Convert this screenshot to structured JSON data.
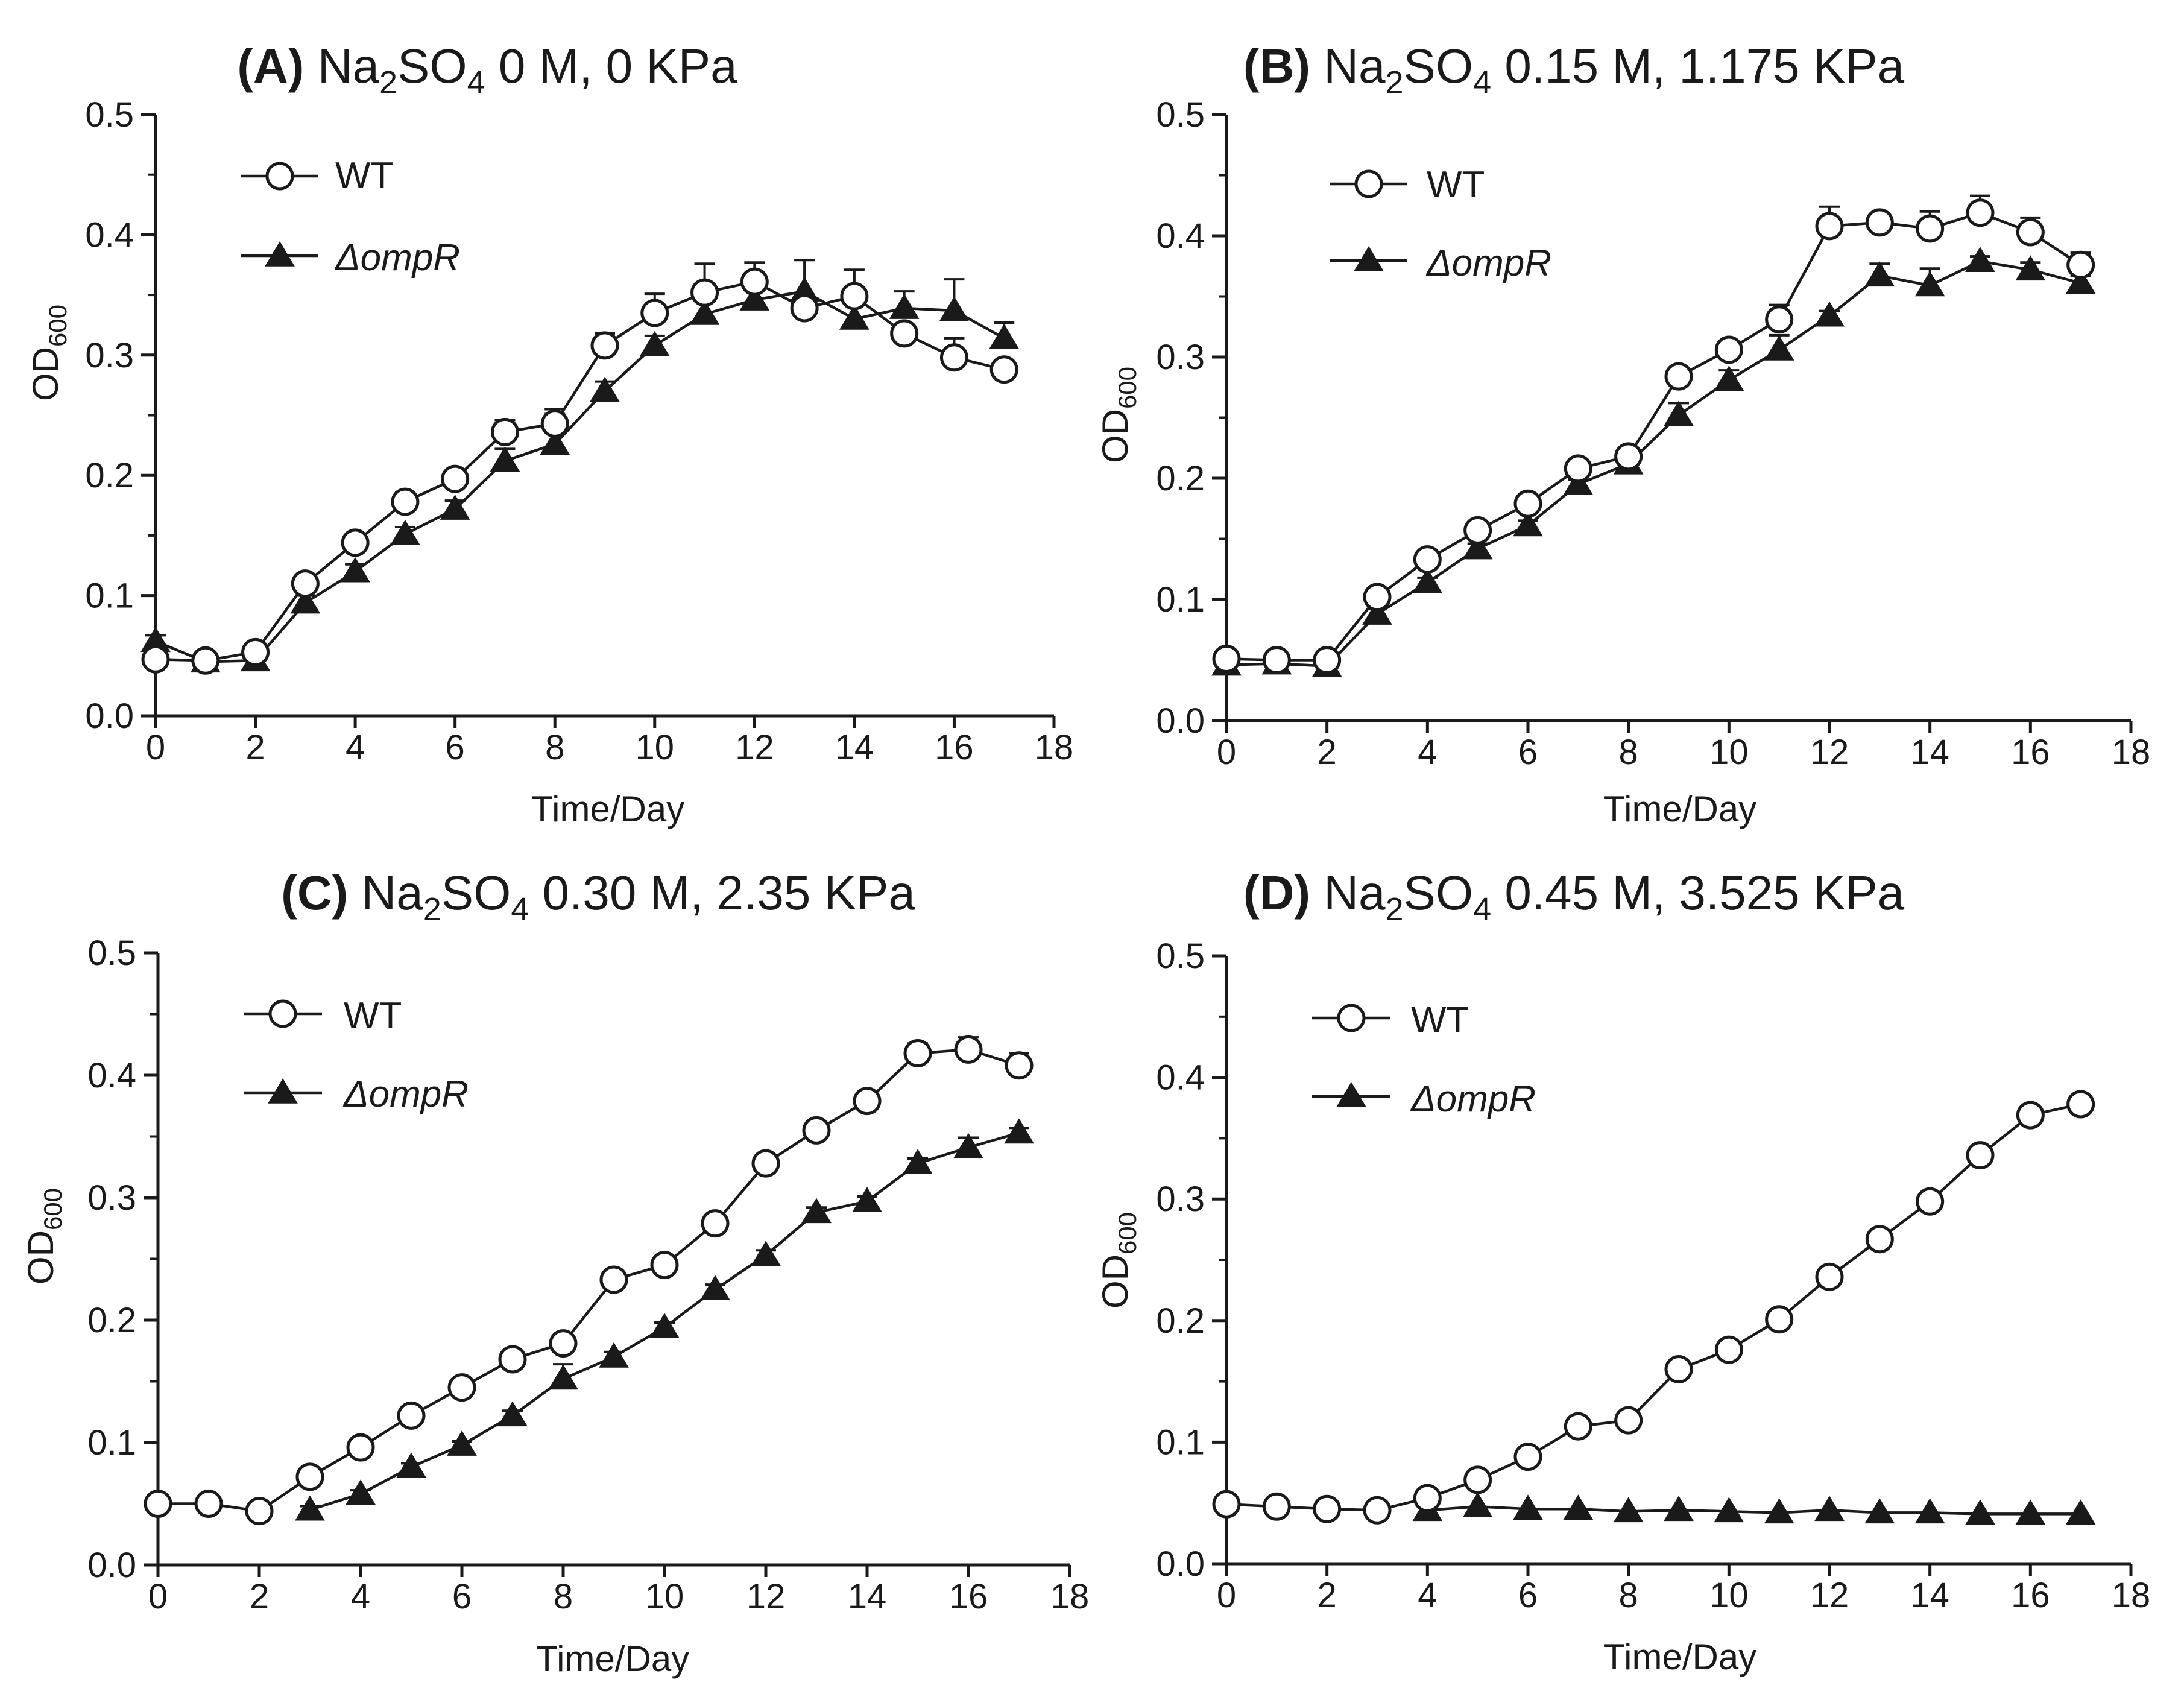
{
  "chart_data": [
    {
      "type": "line",
      "panel_label": "(A)",
      "title_main": "Na",
      "title_sub": "2",
      "title_mid": "SO",
      "title_sub2": "4",
      "title_rest": " 0 M,  0 KPa",
      "xlabel": "Time/Day",
      "ylabel_main": "OD",
      "ylabel_sub": "600",
      "xlim": [
        0,
        18
      ],
      "ylim": [
        0,
        0.5
      ],
      "xticks": [
        "0",
        "2",
        "4",
        "6",
        "8",
        "10",
        "12",
        "14",
        "16",
        "18"
      ],
      "yticks": [
        "0.0",
        "0.1",
        "0.2",
        "0.3",
        "0.4",
        "0.5"
      ],
      "legend_position": "top-left",
      "series": [
        {
          "name": "WT",
          "marker": "open-circle",
          "x": [
            0,
            1,
            2,
            3,
            4,
            5,
            6,
            7,
            8,
            9,
            10,
            11,
            12,
            13,
            14,
            15,
            16,
            17
          ],
          "values": [
            0.047,
            0.046,
            0.053,
            0.11,
            0.144,
            0.178,
            0.197,
            0.236,
            0.243,
            0.308,
            0.335,
            0.352,
            0.361,
            0.339,
            0.349,
            0.318,
            0.298,
            0.288
          ],
          "errors": [
            0.004,
            0.003,
            0.004,
            0.005,
            0.005,
            0.008,
            0.005,
            0.01,
            0.012,
            0.01,
            0.016,
            0.024,
            0.016,
            0.009,
            0.022,
            0.008,
            0.016,
            0.006
          ]
        },
        {
          "name": "ΔompR",
          "marker": "filled-triangle",
          "x": [
            0,
            1,
            2,
            3,
            4,
            5,
            6,
            7,
            8,
            9,
            10,
            11,
            12,
            13,
            14,
            15,
            16,
            17
          ],
          "values": [
            0.062,
            0.045,
            0.046,
            0.094,
            0.12,
            0.151,
            0.172,
            0.212,
            0.226,
            0.27,
            0.308,
            0.334,
            0.346,
            0.353,
            0.33,
            0.339,
            0.337,
            0.314
          ],
          "errors": [
            0.005,
            0.003,
            0.003,
            0.006,
            0.006,
            0.006,
            0.007,
            0.01,
            0.025,
            0.008,
            0.008,
            0.014,
            0.012,
            0.026,
            0.02,
            0.014,
            0.026,
            0.013
          ]
        }
      ]
    },
    {
      "type": "line",
      "panel_label": "(B)",
      "title_main": "Na",
      "title_sub": "2",
      "title_mid": "SO",
      "title_sub2": "4",
      "title_rest": " 0.15 M, 1.175 KPa",
      "xlabel": "Time/Day",
      "ylabel_main": "OD",
      "ylabel_sub": "600",
      "xlim": [
        0,
        18
      ],
      "ylim": [
        0,
        0.5
      ],
      "xticks": [
        "0",
        "2",
        "4",
        "6",
        "8",
        "10",
        "12",
        "14",
        "16",
        "18"
      ],
      "yticks": [
        "0.0",
        "0.1",
        "0.2",
        "0.3",
        "0.4",
        "0.5"
      ],
      "legend_position": "top-left",
      "series": [
        {
          "name": "WT",
          "marker": "open-circle",
          "x": [
            0,
            1,
            2,
            3,
            4,
            5,
            6,
            7,
            8,
            9,
            10,
            11,
            12,
            13,
            14,
            15,
            16,
            17
          ],
          "values": [
            0.051,
            0.05,
            0.05,
            0.102,
            0.133,
            0.157,
            0.179,
            0.208,
            0.218,
            0.284,
            0.306,
            0.331,
            0.408,
            0.411,
            0.406,
            0.419,
            0.403,
            0.376
          ],
          "errors": [
            0.003,
            0.003,
            0.003,
            0.004,
            0.004,
            0.004,
            0.004,
            0.004,
            0.006,
            0.005,
            0.006,
            0.012,
            0.016,
            0.006,
            0.014,
            0.014,
            0.012,
            0.01
          ]
        },
        {
          "name": "ΔompR",
          "marker": "filled-triangle",
          "x": [
            0,
            1,
            2,
            3,
            4,
            5,
            6,
            7,
            8,
            9,
            10,
            11,
            12,
            13,
            14,
            15,
            16,
            17
          ],
          "values": [
            0.046,
            0.047,
            0.045,
            0.088,
            0.114,
            0.142,
            0.161,
            0.195,
            0.212,
            0.252,
            0.281,
            0.306,
            0.334,
            0.367,
            0.359,
            0.379,
            0.372,
            0.361
          ],
          "errors": [
            0.003,
            0.003,
            0.003,
            0.004,
            0.004,
            0.004,
            0.004,
            0.004,
            0.008,
            0.01,
            0.008,
            0.012,
            0.004,
            0.01,
            0.014,
            0.004,
            0.006,
            0.006
          ]
        }
      ]
    },
    {
      "type": "line",
      "panel_label": "(C)",
      "title_main": "Na",
      "title_sub": "2",
      "title_mid": "SO",
      "title_sub2": "4",
      "title_rest": " 0.30 M, 2.35 KPa",
      "xlabel": "Time/Day",
      "ylabel_main": "OD",
      "ylabel_sub": "600",
      "xlim": [
        0,
        18
      ],
      "ylim": [
        0,
        0.5
      ],
      "xticks": [
        "0",
        "2",
        "4",
        "6",
        "8",
        "10",
        "12",
        "14",
        "16",
        "18"
      ],
      "yticks": [
        "0.0",
        "0.1",
        "0.2",
        "0.3",
        "0.4",
        "0.5"
      ],
      "legend_position": "top-left",
      "series": [
        {
          "name": "WT",
          "marker": "open-circle",
          "x": [
            0,
            1,
            2,
            3,
            4,
            5,
            6,
            7,
            8,
            9,
            10,
            11,
            12,
            13,
            14,
            15,
            16,
            17
          ],
          "values": [
            0.05,
            0.05,
            0.044,
            0.072,
            0.096,
            0.122,
            0.145,
            0.168,
            0.181,
            0.233,
            0.245,
            0.279,
            0.328,
            0.355,
            0.379,
            0.418,
            0.421,
            0.408
          ],
          "errors": [
            0.003,
            0.003,
            0.003,
            0.003,
            0.003,
            0.003,
            0.003,
            0.003,
            0.004,
            0.004,
            0.004,
            0.004,
            0.004,
            0.006,
            0.004,
            0.008,
            0.01,
            0.01
          ]
        },
        {
          "name": "ΔompR",
          "marker": "filled-triangle",
          "x": [
            3,
            4,
            5,
            6,
            7,
            8,
            9,
            10,
            11,
            12,
            13,
            14,
            15,
            16,
            17
          ],
          "values": [
            0.045,
            0.058,
            0.08,
            0.098,
            0.122,
            0.152,
            0.17,
            0.194,
            0.225,
            0.253,
            0.288,
            0.297,
            0.328,
            0.341,
            0.353
          ],
          "errors": [
            0.003,
            0.003,
            0.003,
            0.003,
            0.004,
            0.012,
            0.004,
            0.004,
            0.004,
            0.004,
            0.004,
            0.004,
            0.004,
            0.008,
            0.004
          ]
        }
      ]
    },
    {
      "type": "line",
      "panel_label": "(D)",
      "title_main": "Na",
      "title_sub": "2",
      "title_mid": "SO",
      "title_sub2": "4",
      "title_rest": " 0.45 M, 3.525 KPa",
      "xlabel": "Time/Day",
      "ylabel_main": "OD",
      "ylabel_sub": "600",
      "xlim": [
        0,
        18
      ],
      "ylim": [
        0,
        0.5
      ],
      "xticks": [
        "0",
        "2",
        "4",
        "6",
        "8",
        "10",
        "12",
        "14",
        "16",
        "18"
      ],
      "yticks": [
        "0.0",
        "0.1",
        "0.2",
        "0.3",
        "0.4",
        "0.5"
      ],
      "legend_position": "top-left",
      "series": [
        {
          "name": "WT",
          "marker": "open-circle",
          "x": [
            0,
            1,
            2,
            3,
            4,
            5,
            6,
            7,
            8,
            9,
            10,
            11,
            12,
            13,
            14,
            15,
            16,
            17
          ],
          "values": [
            0.049,
            0.047,
            0.045,
            0.044,
            0.054,
            0.069,
            0.088,
            0.113,
            0.118,
            0.16,
            0.176,
            0.201,
            0.236,
            0.267,
            0.298,
            0.336,
            0.369,
            0.378
          ],
          "errors": [
            0.002,
            0.002,
            0.002,
            0.002,
            0.002,
            0.002,
            0.002,
            0.002,
            0.002,
            0.002,
            0.002,
            0.002,
            0.002,
            0.002,
            0.002,
            0.002,
            0.002,
            0.002
          ]
        },
        {
          "name": "ΔompR",
          "marker": "filled-triangle",
          "x": [
            4,
            5,
            6,
            7,
            8,
            9,
            10,
            11,
            12,
            13,
            14,
            15,
            16,
            17
          ],
          "values": [
            0.044,
            0.047,
            0.045,
            0.045,
            0.043,
            0.044,
            0.043,
            0.042,
            0.044,
            0.042,
            0.042,
            0.041,
            0.041,
            0.041
          ],
          "errors": [
            0.002,
            0.002,
            0.002,
            0.002,
            0.002,
            0.002,
            0.002,
            0.002,
            0.002,
            0.002,
            0.002,
            0.002,
            0.002,
            0.002
          ]
        }
      ]
    }
  ]
}
